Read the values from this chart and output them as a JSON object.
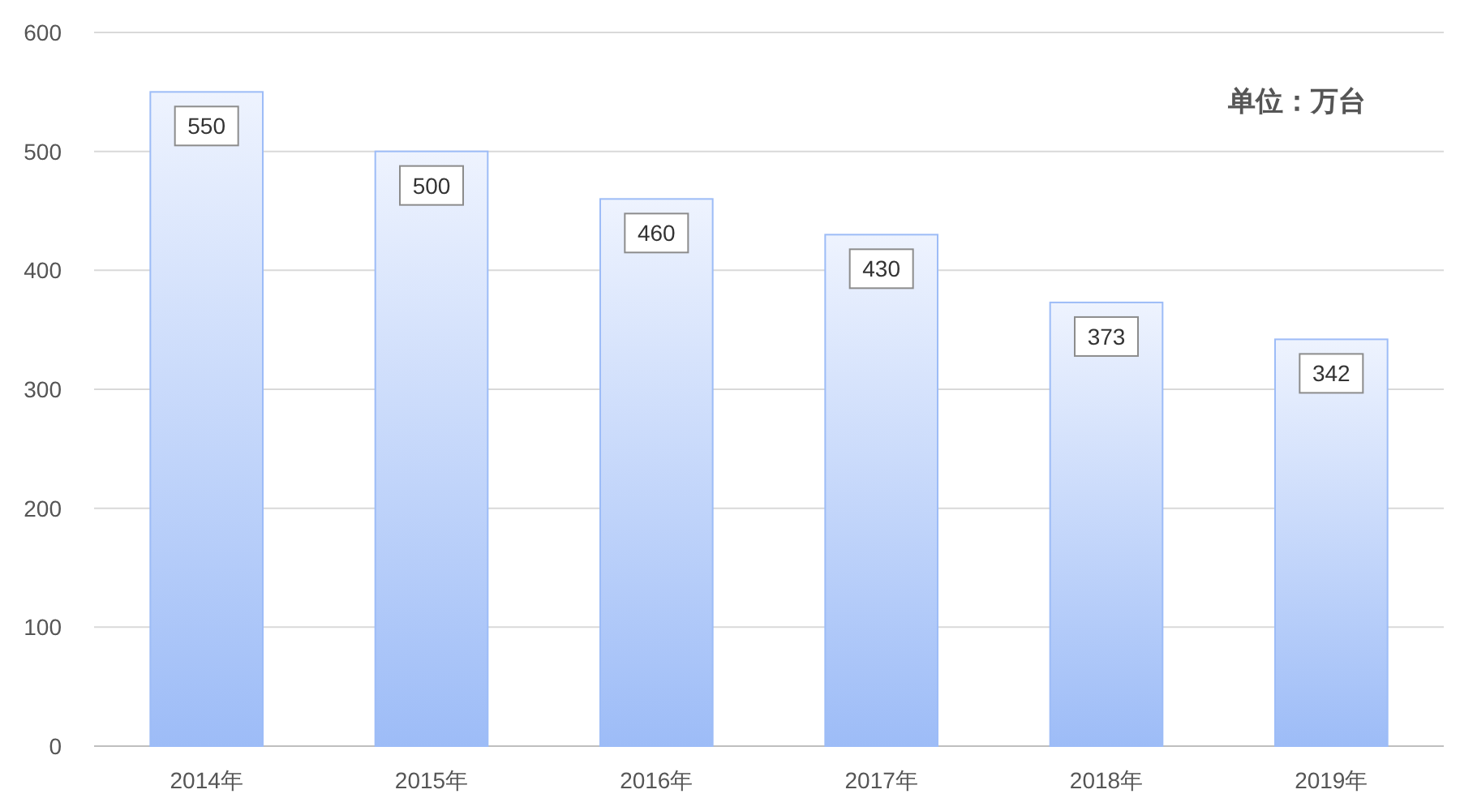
{
  "chart_data": {
    "type": "bar",
    "categories": [
      "2014年",
      "2015年",
      "2016年",
      "2017年",
      "2018年",
      "2019年"
    ],
    "values": [
      550,
      500,
      460,
      430,
      373,
      342
    ],
    "color": "#9dbcf7",
    "ylim": [
      0,
      600
    ],
    "yticks": [
      0,
      100,
      200,
      300,
      400,
      500,
      600
    ],
    "grid": "y",
    "data_labels": true,
    "annotations": [
      "单位：万台"
    ]
  }
}
